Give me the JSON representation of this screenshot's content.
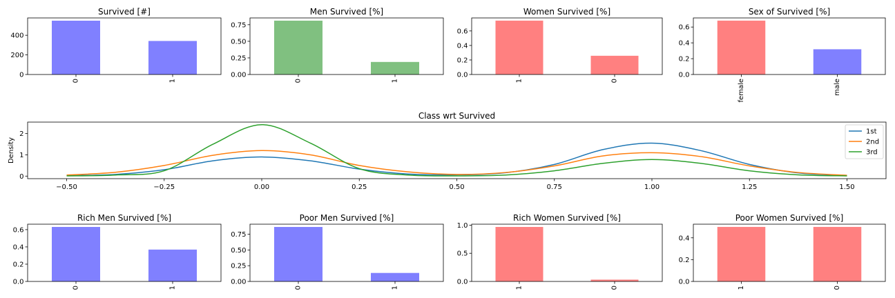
{
  "chart_data": [
    {
      "type": "bar",
      "title": "Survived [#]",
      "categories": [
        "0",
        "1"
      ],
      "values": [
        549,
        342
      ],
      "ylim": [
        0,
        577
      ],
      "yticks": [
        0,
        200,
        400
      ],
      "ytick_labels": [
        "0",
        "200",
        "400"
      ],
      "color": "#8080ff",
      "grid": false
    },
    {
      "type": "bar",
      "title": "Men Survived [%]",
      "categories": [
        "0",
        "1"
      ],
      "values": [
        0.811,
        0.189
      ],
      "ylim": [
        0,
        0.852
      ],
      "yticks": [
        0,
        0.25,
        0.5,
        0.75
      ],
      "ytick_labels": [
        "0.00",
        "0.25",
        "0.50",
        "0.75"
      ],
      "color": "#80c080",
      "grid": false
    },
    {
      "type": "bar",
      "title": "Women Survived [%]",
      "categories": [
        "1",
        "0"
      ],
      "values": [
        0.742,
        0.258
      ],
      "ylim": [
        0,
        0.779
      ],
      "yticks": [
        0,
        0.2,
        0.4,
        0.6
      ],
      "ytick_labels": [
        "0.0",
        "0.2",
        "0.4",
        "0.6"
      ],
      "color": "#ff8080",
      "grid": false
    },
    {
      "type": "bar",
      "title": "Sex of Survived [%]",
      "categories": [
        "female",
        "male"
      ],
      "values": [
        0.681,
        0.319
      ],
      "ylim": [
        0,
        0.715
      ],
      "yticks": [
        0,
        0.2,
        0.4,
        0.6
      ],
      "ytick_labels": [
        "0.0",
        "0.2",
        "0.4",
        "0.6"
      ],
      "color": "#ff8080|#8080ff",
      "grid": false
    },
    {
      "type": "line",
      "title": "Class wrt Survived",
      "ylabel": "Density",
      "xlim": [
        -0.6,
        1.6
      ],
      "ylim": [
        -0.12,
        2.54
      ],
      "xticks": [
        -0.5,
        -0.25,
        0,
        0.25,
        0.5,
        0.75,
        1.0,
        1.25,
        1.5
      ],
      "xtick_labels": [
        "−0.50",
        "−0.25",
        "0.00",
        "0.25",
        "0.50",
        "0.75",
        "1.00",
        "1.25",
        "1.50"
      ],
      "yticks": [
        0,
        1,
        2
      ],
      "ytick_labels": [
        "0",
        "1",
        "2"
      ],
      "legend_position": "top-right",
      "grid": false,
      "series": [
        {
          "name": "1st",
          "color": "#1f77b4",
          "x": [
            -0.5,
            -0.375,
            -0.25,
            -0.125,
            0,
            0.125,
            0.25,
            0.375,
            0.5,
            0.625,
            0.75,
            0.875,
            1,
            1.125,
            1.25,
            1.375,
            1.5
          ],
          "y": [
            0.02,
            0.08,
            0.3,
            0.72,
            0.9,
            0.72,
            0.33,
            0.1,
            0.06,
            0.16,
            0.55,
            1.25,
            1.55,
            1.2,
            0.55,
            0.15,
            0.03
          ]
        },
        {
          "name": "2nd",
          "color": "#ff7f0e",
          "x": [
            -0.5,
            -0.375,
            -0.25,
            -0.125,
            0,
            0.125,
            0.25,
            0.375,
            0.5,
            0.625,
            0.75,
            0.875,
            1,
            1.125,
            1.25,
            1.375,
            1.5
          ],
          "y": [
            0.05,
            0.18,
            0.5,
            0.98,
            1.2,
            1.0,
            0.5,
            0.2,
            0.08,
            0.17,
            0.48,
            0.95,
            1.1,
            0.92,
            0.48,
            0.17,
            0.04
          ]
        },
        {
          "name": "3rd",
          "color": "#2ca02c",
          "x": [
            -0.5,
            -0.375,
            -0.25,
            -0.125,
            0,
            0.125,
            0.25,
            0.375,
            0.5,
            0.625,
            0.75,
            0.875,
            1,
            1.125,
            1.25,
            1.375,
            1.5
          ],
          "y": [
            0.01,
            0.05,
            0.25,
            1.5,
            2.42,
            1.55,
            0.35,
            0.05,
            0.01,
            0.05,
            0.25,
            0.6,
            0.78,
            0.6,
            0.25,
            0.06,
            0.01
          ]
        }
      ]
    },
    {
      "type": "bar",
      "title": "Rich Men Survived [%]",
      "categories": [
        "0",
        "1"
      ],
      "values": [
        0.631,
        0.369
      ],
      "ylim": [
        0,
        0.663
      ],
      "yticks": [
        0,
        0.2,
        0.4,
        0.6
      ],
      "ytick_labels": [
        "0.0",
        "0.2",
        "0.4",
        "0.6"
      ],
      "color": "#8080ff",
      "grid": false
    },
    {
      "type": "bar",
      "title": "Poor Men Survived [%]",
      "categories": [
        "0",
        "1"
      ],
      "values": [
        0.865,
        0.135
      ],
      "ylim": [
        0,
        0.909
      ],
      "yticks": [
        0,
        0.25,
        0.5,
        0.75
      ],
      "ytick_labels": [
        "0.00",
        "0.25",
        "0.50",
        "0.75"
      ],
      "color": "#8080ff",
      "grid": false
    },
    {
      "type": "bar",
      "title": "Rich Women Survived [%]",
      "categories": [
        "1",
        "0"
      ],
      "values": [
        0.968,
        0.032
      ],
      "ylim": [
        0,
        1.017
      ],
      "yticks": [
        0,
        0.5,
        1.0
      ],
      "ytick_labels": [
        "0.0",
        "0.5",
        "1.0"
      ],
      "color": "#ff8080",
      "grid": false
    },
    {
      "type": "bar",
      "title": "Poor Women Survived [%]",
      "categories": [
        "1",
        "0"
      ],
      "values": [
        0.5,
        0.5
      ],
      "ylim": [
        0,
        0.525
      ],
      "yticks": [
        0,
        0.2,
        0.4
      ],
      "ytick_labels": [
        "0.0",
        "0.2",
        "0.4"
      ],
      "color": "#ff8080",
      "grid": false
    }
  ]
}
